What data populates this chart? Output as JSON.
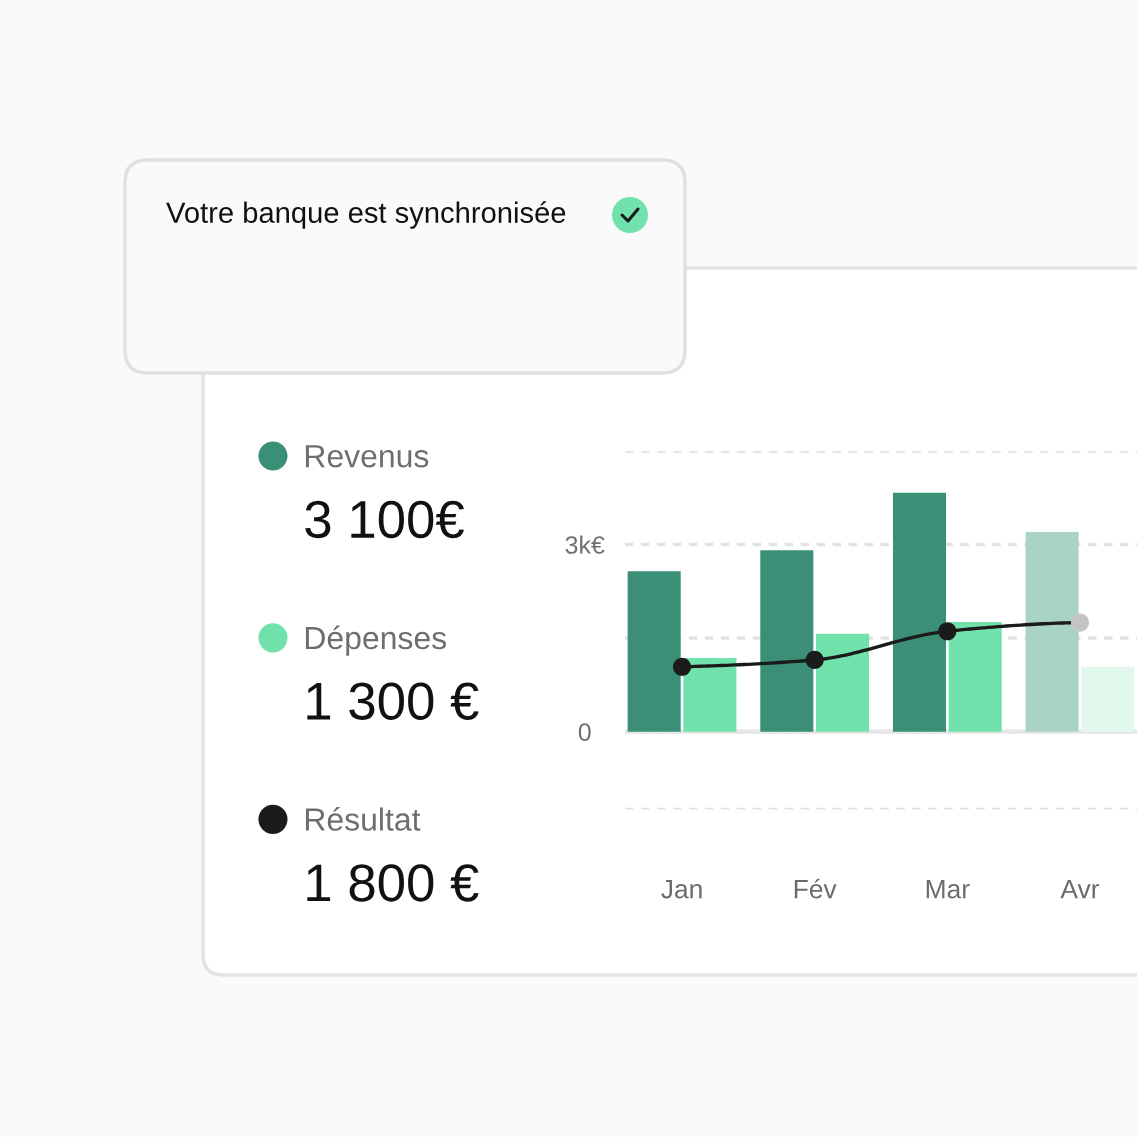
{
  "chart_data": {
    "type": "bar",
    "categories": [
      "Jan",
      "Fév",
      "Mar",
      "Avr"
    ],
    "series": [
      {
        "name": "Revenus",
        "color": "#3b8f77",
        "colors": [
          "#3b8f77",
          "#3b8f77",
          "#3b8f77",
          "#a9d4c5"
        ],
        "values": [
          2570,
          2910,
          3830,
          3200
        ]
      },
      {
        "name": "Dépenses",
        "color": "#72e2ad",
        "colors": [
          "#72e2ad",
          "#72e2ad",
          "#72e2ad",
          "#e3f8ed"
        ],
        "values": [
          1180,
          1570,
          1760,
          1040
        ]
      },
      {
        "name": "Résultat",
        "type": "line",
        "color": "#1b1b1b",
        "colors": [
          "#1b1b1b",
          "#1b1b1b",
          "#1b1b1b",
          "#c4c4c4"
        ],
        "values": [
          1040,
          1150,
          1610,
          1750
        ]
      }
    ],
    "ylim": [
      -1250,
      4500
    ],
    "yticks": [
      {
        "value": -1250,
        "label": null
      },
      0,
      {
        "value": 1500,
        "label": null
      },
      {
        "value": 3000,
        "label": "3k€"
      },
      {
        "value": 4500,
        "label": null
      }
    ],
    "grid": "y",
    "legend": "left",
    "marker": "circle",
    "ref_lines": [
      {
        "axis": "y",
        "value": 0,
        "color": "#e6e6e6",
        "line_style": "solid"
      }
    ],
    "annotations": [
      "Votre banque est synchronisée",
      "3 100€",
      "1 300 €",
      "1 800 €"
    ]
  }
}
